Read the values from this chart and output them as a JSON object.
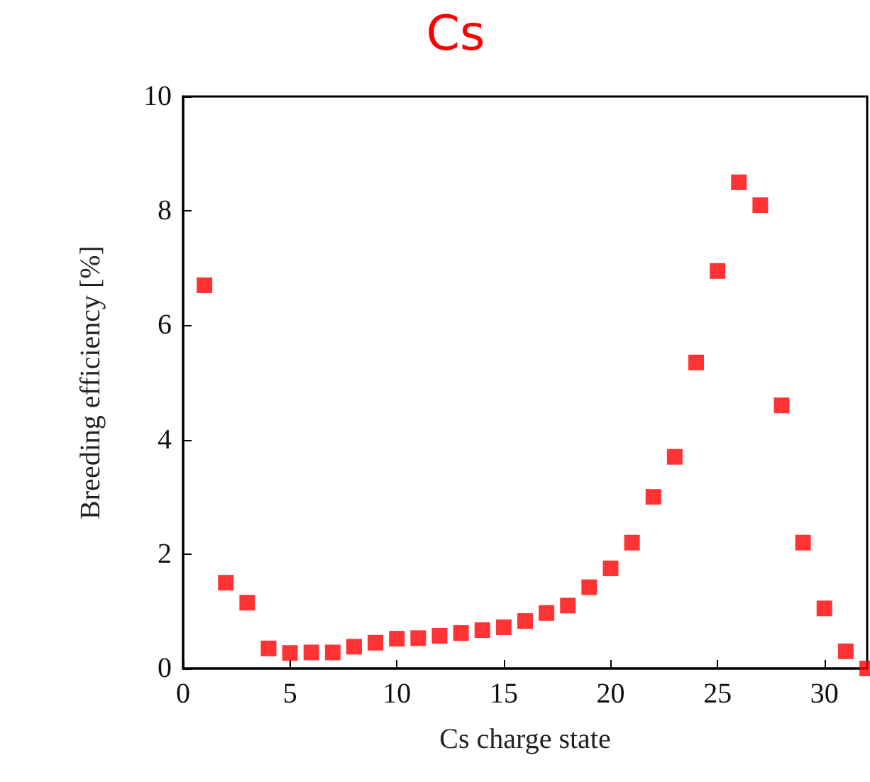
{
  "chart_data": {
    "type": "scatter",
    "title": "Cs",
    "xlabel": "Cs charge state",
    "ylabel": "Breeding efficiency [%]",
    "x": [
      1,
      2,
      3,
      4,
      5,
      6,
      7,
      8,
      9,
      10,
      11,
      12,
      13,
      14,
      15,
      16,
      17,
      18,
      19,
      20,
      21,
      22,
      23,
      24,
      25,
      26,
      27,
      28,
      29,
      30,
      31,
      32
    ],
    "series": [
      {
        "color": "#ff0000",
        "values": [
          6.7,
          1.5,
          1.15,
          0.35,
          0.27,
          0.28,
          0.28,
          0.38,
          0.45,
          0.52,
          0.53,
          0.57,
          0.62,
          0.67,
          0.72,
          0.83,
          0.97,
          1.1,
          1.42,
          1.75,
          2.2,
          3.0,
          3.7,
          5.35,
          6.95,
          8.5,
          8.1,
          4.6,
          2.2,
          1.05,
          0.3,
          0.0
        ]
      }
    ],
    "xlim": [
      0,
      32
    ],
    "xticks": [
      0,
      5,
      10,
      15,
      20,
      25,
      30
    ],
    "ylim": [
      0,
      10
    ],
    "yticks": [
      0,
      2,
      4,
      6,
      8,
      10
    ],
    "grid": false,
    "marker": "square"
  }
}
